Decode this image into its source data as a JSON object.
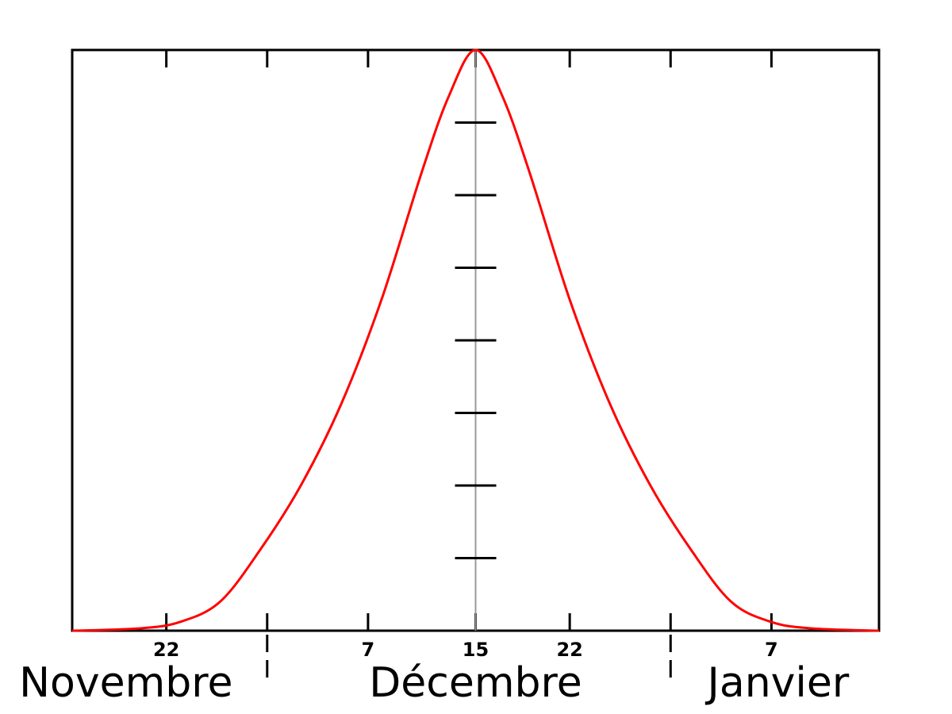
{
  "chart_data": {
    "type": "line",
    "title": "",
    "xlabel": "",
    "ylabel": "",
    "xlim": [
      -30,
      30
    ],
    "ylim": [
      0,
      1
    ],
    "grid": false,
    "x_tick_labels": [
      {
        "x": -23,
        "label": "22"
      },
      {
        "x": -8,
        "label": "7"
      },
      {
        "x": 0,
        "label": "15"
      },
      {
        "x": 7,
        "label": "22"
      },
      {
        "x": 22,
        "label": "7"
      }
    ],
    "x_minor_ticks": [
      -23,
      -15.5,
      -8,
      0,
      7,
      14.5,
      22
    ],
    "month_labels": [
      {
        "label": "Novembre",
        "x": -26
      },
      {
        "label": "Décembre",
        "x": 0
      },
      {
        "label": "Janvier",
        "x": 22.5
      }
    ],
    "month_boundaries": [
      -15.5,
      14.5
    ],
    "marker_line_x": 0,
    "marker_ticks_y": [
      0.125,
      0.25,
      0.375,
      0.5,
      0.625,
      0.75,
      0.875
    ],
    "series": [
      {
        "color": "#ff0000",
        "x": [
          -30,
          -25,
          -22,
          -19,
          -16,
          -13,
          -10,
          -7,
          -4,
          -2,
          0,
          2,
          4,
          7,
          10,
          13,
          16,
          19,
          22,
          25,
          30
        ],
        "y": [
          0,
          0.004,
          0.015,
          0.05,
          0.14,
          0.25,
          0.39,
          0.57,
          0.79,
          0.92,
          1,
          0.92,
          0.79,
          0.57,
          0.39,
          0.25,
          0.14,
          0.05,
          0.015,
          0.004,
          0
        ]
      }
    ]
  }
}
